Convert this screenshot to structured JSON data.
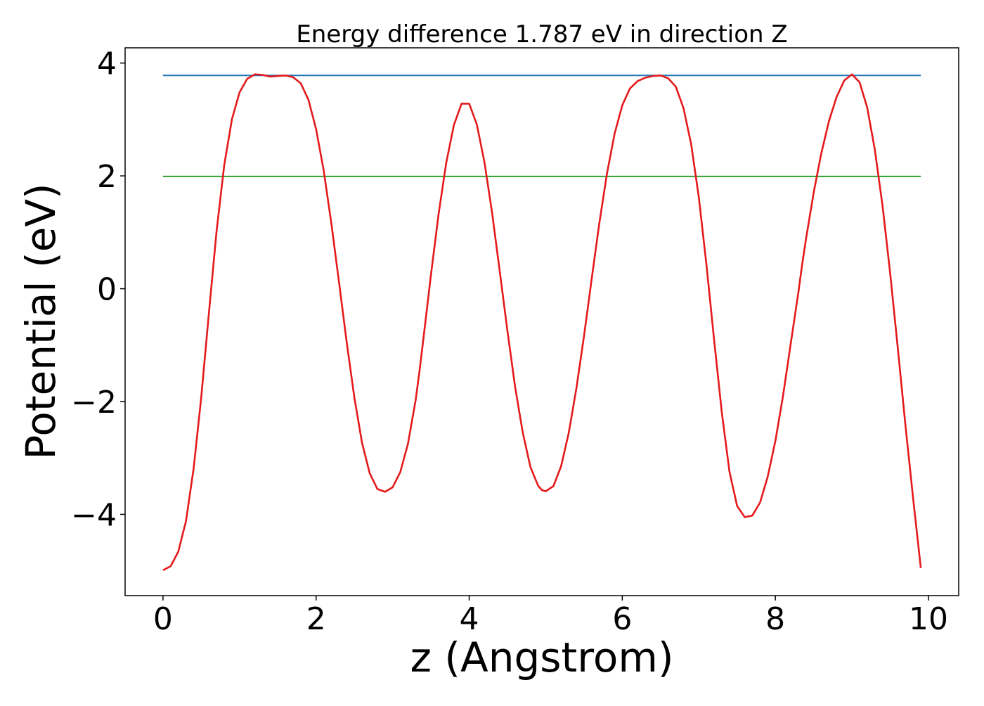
{
  "chart_data": {
    "type": "line",
    "title": "Energy difference 1.787 eV in direction Z",
    "xlabel": "z (Angstrom)",
    "ylabel": "Potential (eV)",
    "xlim": [
      -0.495,
      10.395
    ],
    "ylim": [
      -5.44,
      4.27
    ],
    "xticks": [
      0,
      2,
      4,
      6,
      8,
      10
    ],
    "xtick_labels": [
      "0",
      "2",
      "4",
      "6",
      "8",
      "10"
    ],
    "yticks": [
      -4,
      -2,
      0,
      2,
      4
    ],
    "ytick_labels": [
      "−4",
      "−2",
      "0",
      "2",
      "4"
    ],
    "grid": false,
    "series": [
      {
        "color": "#1f77b4",
        "style": "horizontal-line",
        "x": [
          0,
          9.9
        ],
        "y": [
          3.78,
          3.78
        ]
      },
      {
        "color": "#2ca02c",
        "style": "horizontal-line",
        "x": [
          0,
          9.9
        ],
        "y": [
          1.99,
          1.99
        ]
      },
      {
        "color": "#e41a1c",
        "style": "curve",
        "x": [
          0.0,
          0.1,
          0.2,
          0.3,
          0.4,
          0.5,
          0.6,
          0.7,
          0.8,
          0.9,
          1.0,
          1.1,
          1.2,
          1.3,
          1.4,
          1.5,
          1.6,
          1.7,
          1.8,
          1.9,
          2.0,
          2.1,
          2.2,
          2.3,
          2.4,
          2.5,
          2.6,
          2.7,
          2.8,
          2.9,
          3.0,
          3.1,
          3.2,
          3.3,
          3.35,
          3.4,
          3.5,
          3.6,
          3.7,
          3.8,
          3.9,
          4.0,
          4.1,
          4.2,
          4.3,
          4.4,
          4.5,
          4.6,
          4.7,
          4.8,
          4.9,
          4.95,
          5.0,
          5.1,
          5.2,
          5.3,
          5.4,
          5.5,
          5.6,
          5.7,
          5.8,
          5.9,
          6.0,
          6.1,
          6.2,
          6.3,
          6.4,
          6.5,
          6.6,
          6.7,
          6.8,
          6.9,
          7.0,
          7.1,
          7.2,
          7.3,
          7.4,
          7.5,
          7.6,
          7.7,
          7.8,
          7.9,
          8.0,
          8.1,
          8.2,
          8.3,
          8.35,
          8.4,
          8.5,
          8.6,
          8.7,
          8.8,
          8.9,
          9.0,
          9.1,
          9.2,
          9.3,
          9.4,
          9.5,
          9.6,
          9.7,
          9.8,
          9.9
        ],
        "y": [
          -4.99,
          -4.92,
          -4.66,
          -4.12,
          -3.19,
          -1.92,
          -0.43,
          1.02,
          2.19,
          3.0,
          3.48,
          3.72,
          3.8,
          3.79,
          3.76,
          3.77,
          3.78,
          3.75,
          3.64,
          3.35,
          2.83,
          2.09,
          1.15,
          0.11,
          -0.95,
          -1.93,
          -2.73,
          -3.27,
          -3.55,
          -3.6,
          -3.52,
          -3.25,
          -2.75,
          -1.98,
          -1.47,
          -0.91,
          0.24,
          1.32,
          2.23,
          2.9,
          3.28,
          3.28,
          2.91,
          2.24,
          1.34,
          0.3,
          -0.75,
          -1.74,
          -2.55,
          -3.16,
          -3.49,
          -3.57,
          -3.59,
          -3.5,
          -3.15,
          -2.56,
          -1.77,
          -0.84,
          0.17,
          1.16,
          2.04,
          2.75,
          3.25,
          3.55,
          3.68,
          3.74,
          3.77,
          3.78,
          3.73,
          3.58,
          3.2,
          2.56,
          1.62,
          0.42,
          -0.91,
          -2.19,
          -3.24,
          -3.85,
          -4.05,
          -4.02,
          -3.79,
          -3.33,
          -2.7,
          -1.9,
          -0.98,
          -0.07,
          0.43,
          0.88,
          1.7,
          2.4,
          2.97,
          3.4,
          3.69,
          3.8,
          3.66,
          3.21,
          2.46,
          1.47,
          0.27,
          -1.06,
          -2.43,
          -3.72,
          -4.95
        ]
      }
    ]
  }
}
